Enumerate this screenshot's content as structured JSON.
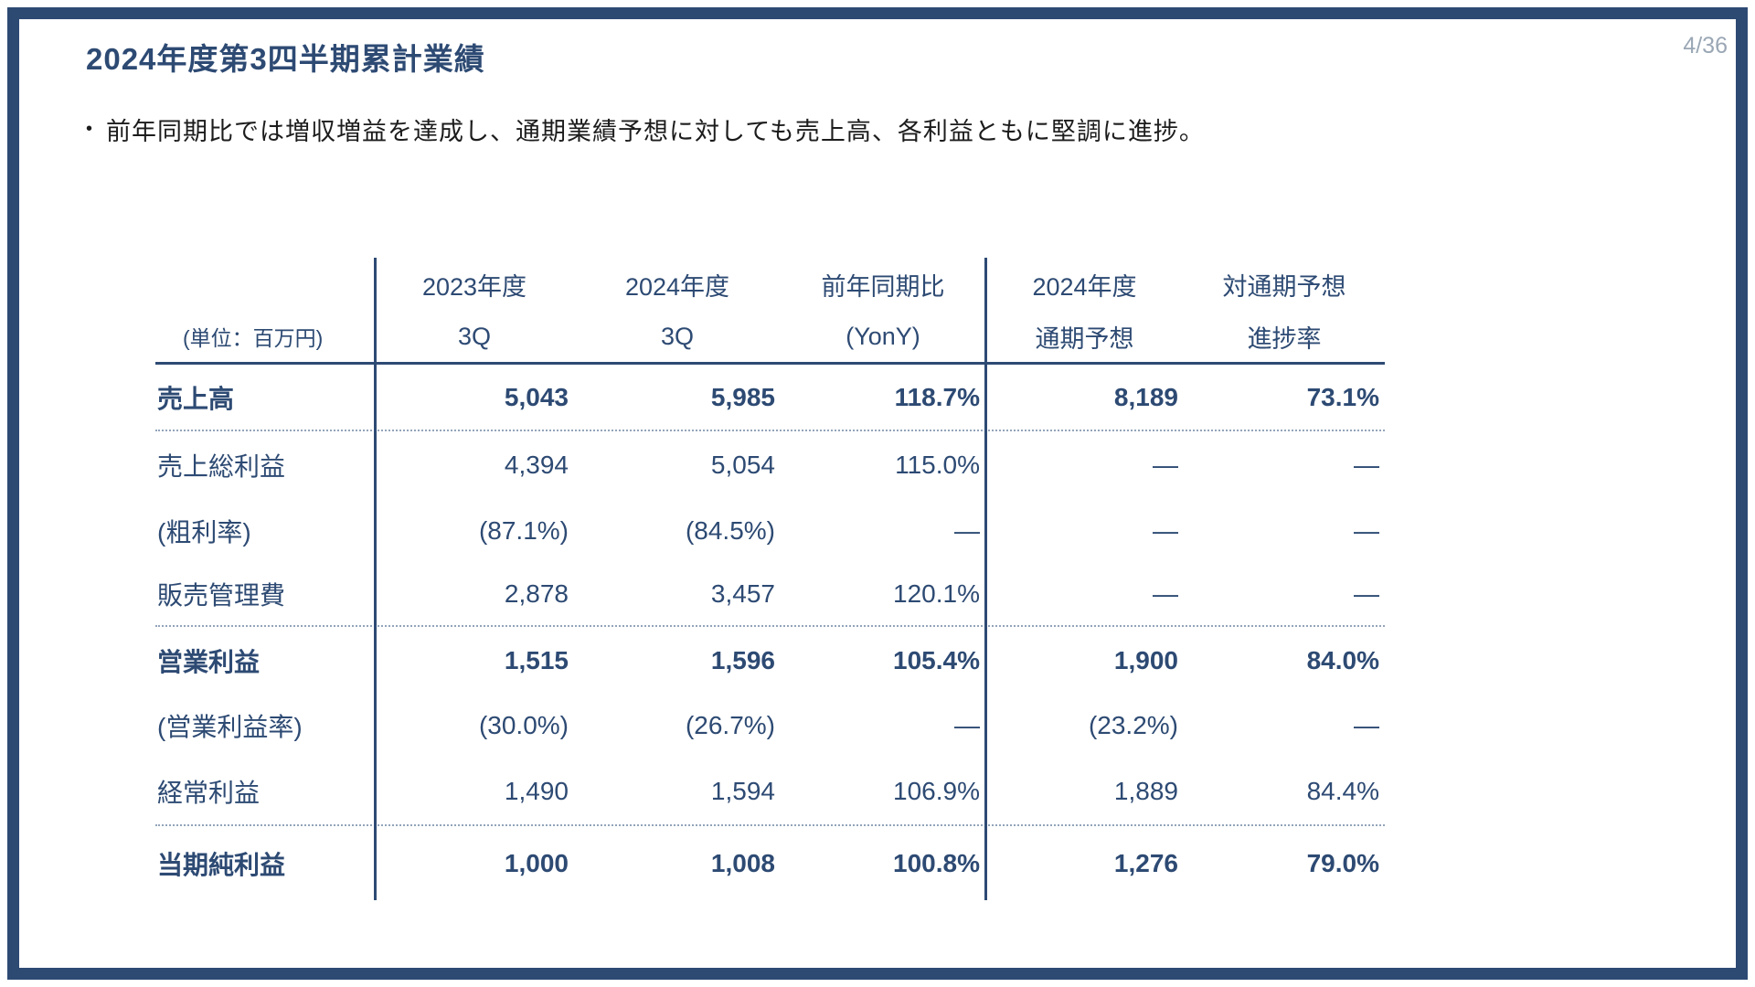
{
  "page": {
    "title": "2024年度第3四半期累計業績",
    "page_number": "4/36",
    "bullet_marker": "•",
    "bullet_text": "前年同期比では増収増益を達成し、通期業績予想に対しても売上高、各利益ともに堅調に進捗。"
  },
  "colors": {
    "accent_navy": "#2d4a73",
    "divider_dotted": "#93a4ba",
    "page_number_gray": "#9aa7b5"
  },
  "table": {
    "unit_note": "(単位：百万円)",
    "header_row1": [
      "2023年度",
      "2024年度",
      "前年同期比",
      "2024年度",
      "対通期予想"
    ],
    "header_row2": [
      "3Q",
      "3Q",
      "(YonY)",
      "通期予想",
      "進捗率"
    ],
    "rows": [
      {
        "label": "売上高",
        "values": [
          "5,043",
          "5,985",
          "118.7%",
          "8,189",
          "73.1%"
        ]
      },
      {
        "label": "売上総利益",
        "values": [
          "4,394",
          "5,054",
          "115.0%",
          "—",
          "—"
        ]
      },
      {
        "label": "(粗利率)",
        "values": [
          "(87.1%)",
          "(84.5%)",
          "—",
          "—",
          "—"
        ]
      },
      {
        "label": "販売管理費",
        "values": [
          "2,878",
          "3,457",
          "120.1%",
          "—",
          "—"
        ]
      },
      {
        "label": "営業利益",
        "values": [
          "1,515",
          "1,596",
          "105.4%",
          "1,900",
          "84.0%"
        ]
      },
      {
        "label": "(営業利益率)",
        "values": [
          "(30.0%)",
          "(26.7%)",
          "—",
          "(23.2%)",
          "—"
        ]
      },
      {
        "label": "経常利益",
        "values": [
          "1,490",
          "1,594",
          "106.9%",
          "1,889",
          "84.4%"
        ]
      },
      {
        "label": "当期純利益",
        "values": [
          "1,000",
          "1,008",
          "100.8%",
          "1,276",
          "79.0%"
        ]
      }
    ]
  }
}
